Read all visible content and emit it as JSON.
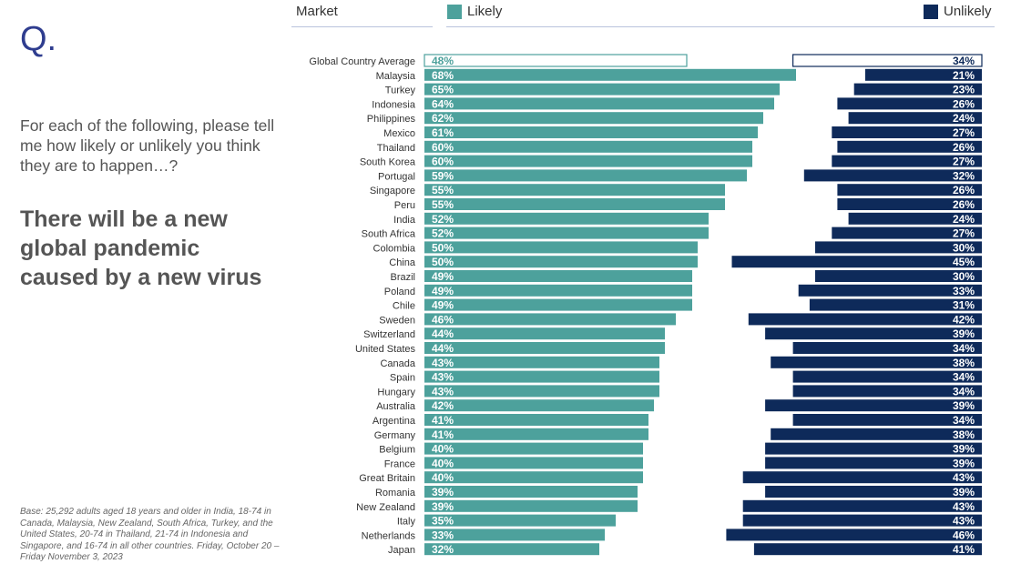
{
  "left_panel": {
    "q_label": "Q.",
    "question": "For each of the following, please tell me how likely or unlikely you think they are to happen…?",
    "statement": "There will be a new global pandemic caused by a new virus",
    "base_note": "Base: 25,292 adults aged 18 years and older in India, 18-74 in Canada, Malaysia, New Zealand, South Africa, Turkey, and the United States, 20-74 in Thailand, 21-74 in Indonesia and Singapore, and 16-74 in all other countries. Friday, October 20 – Friday November 3, 2023"
  },
  "header": {
    "market_label": "Market",
    "likely_label": "Likely",
    "unlikely_label": "Unlikely"
  },
  "colors": {
    "likely": "#4da19c",
    "unlikely": "#0e2a5a",
    "accent": "#2f3d8f",
    "header_line": "#b9c3dd"
  },
  "chart_data": {
    "type": "bar",
    "categories": [
      "Global Country Average",
      "Malaysia",
      "Turkey",
      "Indonesia",
      "Philippines",
      "Mexico",
      "Thailand",
      "South Korea",
      "Portugal",
      "Singapore",
      "Peru",
      "India",
      "South Africa",
      "Colombia",
      "China",
      "Brazil",
      "Poland",
      "Chile",
      "Sweden",
      "Switzerland",
      "United States",
      "Canada",
      "Spain",
      "Hungary",
      "Australia",
      "Argentina",
      "Germany",
      "Belgium",
      "France",
      "Great Britain",
      "Romania",
      "New Zealand",
      "Italy",
      "Netherlands",
      "Japan"
    ],
    "series": [
      {
        "name": "Likely",
        "values": [
          48,
          68,
          65,
          64,
          62,
          61,
          60,
          60,
          59,
          55,
          55,
          52,
          52,
          50,
          50,
          49,
          49,
          49,
          46,
          44,
          44,
          43,
          43,
          43,
          42,
          41,
          41,
          40,
          40,
          40,
          39,
          39,
          35,
          33,
          32
        ]
      },
      {
        "name": "Unlikely",
        "values": [
          34,
          21,
          23,
          26,
          24,
          27,
          26,
          27,
          32,
          26,
          26,
          24,
          27,
          30,
          45,
          30,
          33,
          31,
          42,
          39,
          34,
          38,
          34,
          34,
          39,
          34,
          38,
          39,
          39,
          43,
          39,
          43,
          43,
          46,
          41
        ]
      }
    ],
    "value_format": "{v}%",
    "highlight_first_as_outline": true,
    "legend_position": "top"
  }
}
